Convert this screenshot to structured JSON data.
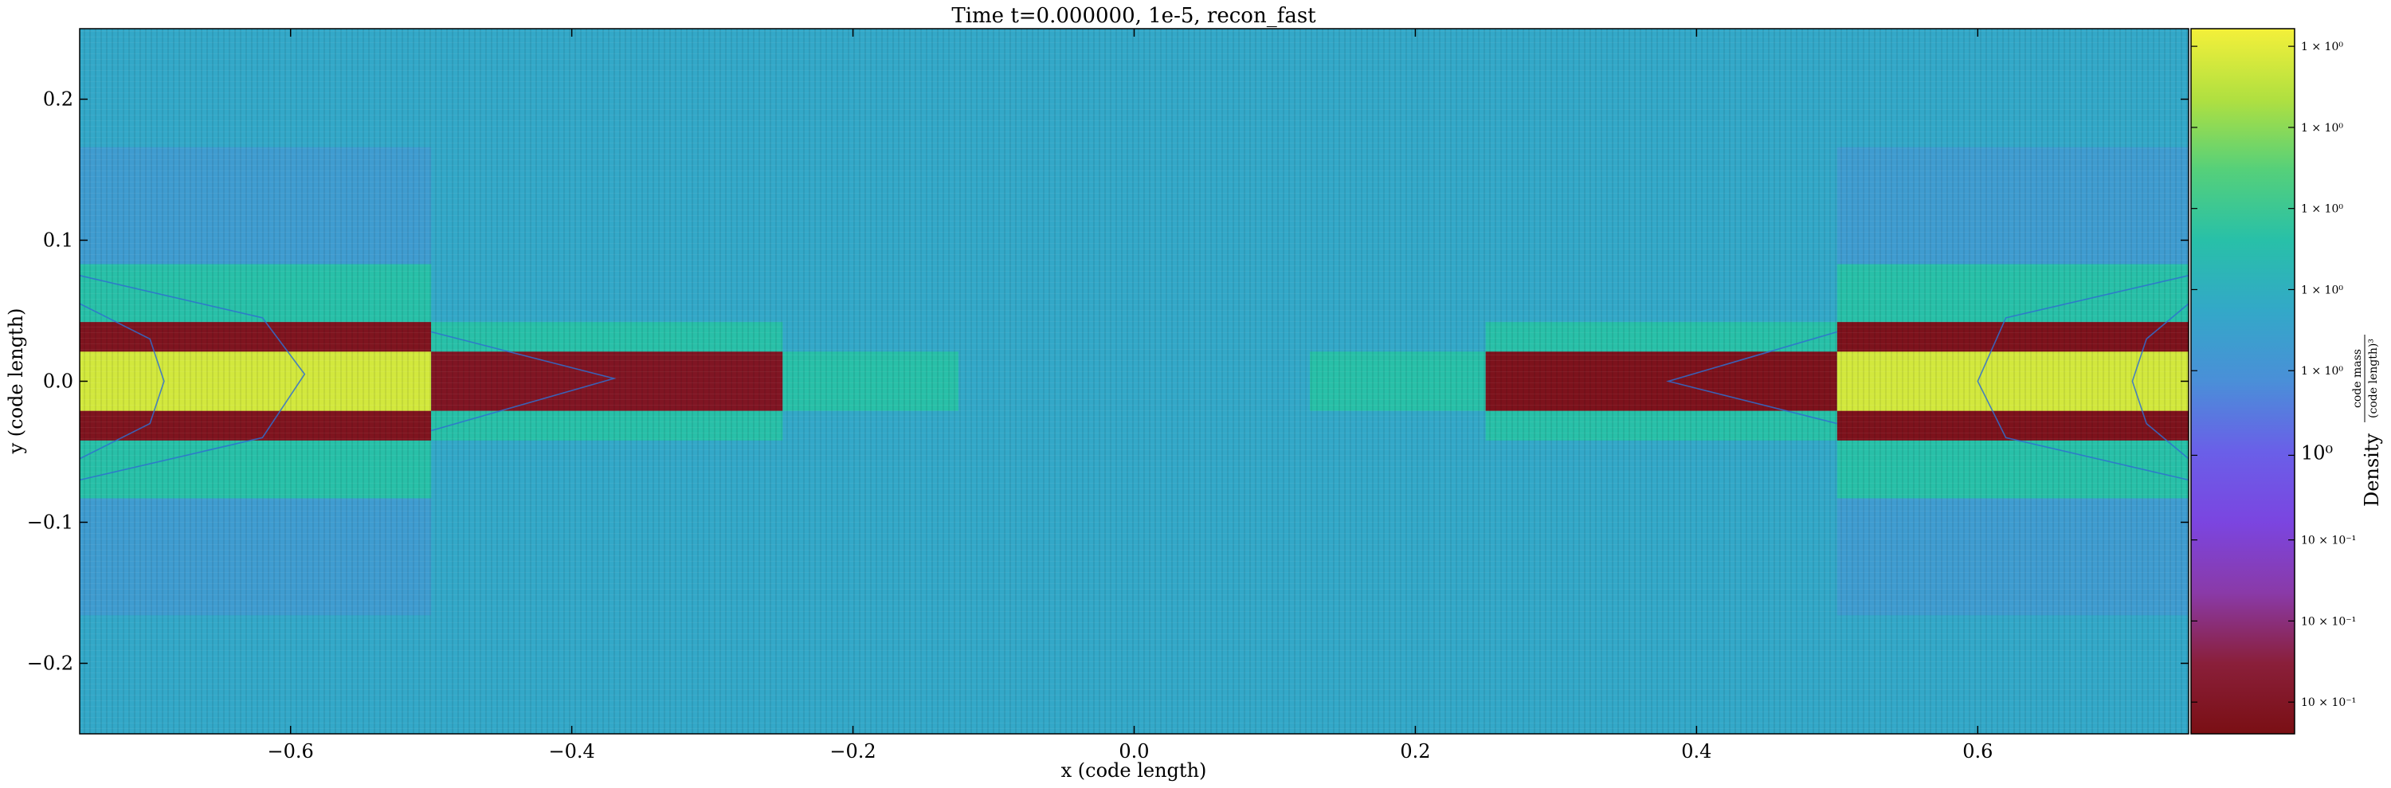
{
  "chart_data": {
    "type": "heatmap",
    "title": "Time t=0.000000, 1e-5, recon_fast",
    "xlabel": "x  (code length)",
    "ylabel": "y  (code length)",
    "xlim": [
      -0.75,
      0.75
    ],
    "ylim": [
      -0.25,
      0.25
    ],
    "xticks": [
      -0.6,
      -0.4,
      -0.2,
      0.0,
      0.2,
      0.4,
      0.6
    ],
    "xtick_labels": [
      "−0.6",
      "−0.4",
      "−0.2",
      "0.0",
      "0.2",
      "0.4",
      "0.6"
    ],
    "yticks": [
      0.2,
      0.1,
      0.0,
      -0.1,
      -0.2
    ],
    "ytick_labels": [
      "0.2",
      "0.1",
      "0.0",
      "−0.1",
      "−0.2"
    ],
    "colorscale": "viridis",
    "colormap_stops": [
      "#7a0f14",
      "#8a1f3a",
      "#8a3aa8",
      "#7b45e0",
      "#6a5fe8",
      "#4a8fd8",
      "#33a8c8",
      "#28c0a8",
      "#55d07a",
      "#b0e040",
      "#f4f03a"
    ],
    "background_level": 0.6,
    "colorbar": {
      "label_main": "Density",
      "label_unit_num": "code mass",
      "label_unit_den": "(code length)³",
      "ticks": [
        {
          "label": "1 × 10⁰",
          "level": 0.975
        },
        {
          "label": "1 × 10⁰",
          "level": 0.86
        },
        {
          "label": "1 × 10⁰",
          "level": 0.745
        },
        {
          "label": "1 × 10⁰",
          "level": 0.63
        },
        {
          "label": "1 × 10⁰",
          "level": 0.515
        },
        {
          "label": "10⁰",
          "level": 0.395
        },
        {
          "label": "10 × 10⁻¹",
          "level": 0.275
        },
        {
          "label": "10 × 10⁻¹",
          "level": 0.16
        },
        {
          "label": "10 × 10⁻¹",
          "level": 0.045
        }
      ]
    },
    "regions": [
      {
        "x0": -0.75,
        "x1": -0.5,
        "y0": -0.083,
        "y1": 0.083,
        "level": 0.7
      },
      {
        "x0": -0.75,
        "x1": -0.5,
        "y0": -0.042,
        "y1": 0.042,
        "level": 0.03
      },
      {
        "x0": -0.75,
        "x1": -0.5,
        "y0": -0.021,
        "y1": 0.021,
        "level": 0.95
      },
      {
        "x0": -0.5,
        "x1": -0.25,
        "y0": -0.042,
        "y1": 0.042,
        "level": 0.7
      },
      {
        "x0": -0.5,
        "x1": -0.25,
        "y0": -0.021,
        "y1": 0.021,
        "level": 0.04
      },
      {
        "x0": -0.25,
        "x1": -0.125,
        "y0": -0.021,
        "y1": 0.021,
        "level": 0.7
      },
      {
        "x0": 0.125,
        "x1": 0.25,
        "y0": -0.021,
        "y1": 0.021,
        "level": 0.7
      },
      {
        "x0": 0.25,
        "x1": 0.5,
        "y0": -0.042,
        "y1": 0.042,
        "level": 0.7
      },
      {
        "x0": 0.25,
        "x1": 0.5,
        "y0": -0.021,
        "y1": 0.021,
        "level": 0.02
      },
      {
        "x0": 0.5,
        "x1": 0.75,
        "y0": -0.083,
        "y1": 0.083,
        "level": 0.7
      },
      {
        "x0": 0.5,
        "x1": 0.75,
        "y0": -0.042,
        "y1": 0.042,
        "level": 0.02
      },
      {
        "x0": 0.5,
        "x1": 0.75,
        "y0": -0.021,
        "y1": 0.021,
        "level": 0.95
      }
    ],
    "band_regions": [
      {
        "x0": -0.75,
        "x1": -0.5,
        "y0": 0.083,
        "y1": 0.166,
        "level": 0.55
      },
      {
        "x0": -0.75,
        "x1": -0.5,
        "y0": -0.166,
        "y1": -0.083,
        "level": 0.55
      },
      {
        "x0": 0.5,
        "x1": 0.75,
        "y0": 0.083,
        "y1": 0.166,
        "level": 0.55
      },
      {
        "x0": 0.5,
        "x1": 0.75,
        "y0": -0.166,
        "y1": -0.083,
        "level": 0.55
      }
    ],
    "field_lines": [
      {
        "points": [
          [
            -0.75,
            0.055
          ],
          [
            -0.7,
            0.03
          ],
          [
            -0.69,
            0.0
          ],
          [
            -0.7,
            -0.03
          ],
          [
            -0.75,
            -0.055
          ]
        ]
      },
      {
        "points": [
          [
            -0.75,
            0.075
          ],
          [
            -0.62,
            0.045
          ],
          [
            -0.59,
            0.005
          ],
          [
            -0.62,
            -0.04
          ],
          [
            -0.75,
            -0.07
          ]
        ]
      },
      {
        "points": [
          [
            -0.5,
            0.035
          ],
          [
            -0.37,
            0.002
          ],
          [
            -0.5,
            -0.035
          ]
        ]
      },
      {
        "points": [
          [
            0.5,
            0.035
          ],
          [
            0.38,
            0.0
          ],
          [
            0.5,
            -0.03
          ]
        ]
      },
      {
        "points": [
          [
            0.75,
            0.075
          ],
          [
            0.62,
            0.045
          ],
          [
            0.6,
            0.0
          ],
          [
            0.62,
            -0.04
          ],
          [
            0.75,
            -0.07
          ]
        ]
      },
      {
        "points": [
          [
            0.75,
            0.055
          ],
          [
            0.72,
            0.03
          ],
          [
            0.71,
            0.0
          ],
          [
            0.72,
            -0.03
          ],
          [
            0.75,
            -0.055
          ]
        ]
      }
    ],
    "grid": false,
    "legend": "none"
  }
}
